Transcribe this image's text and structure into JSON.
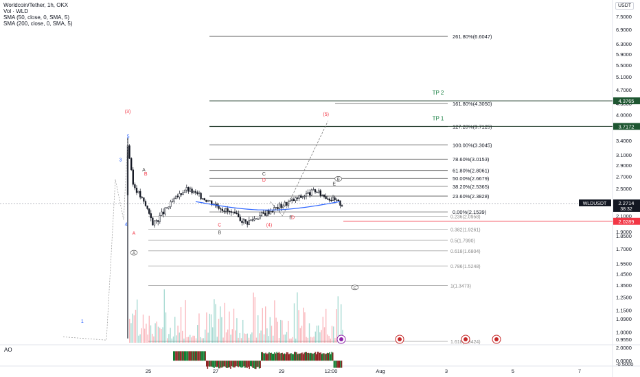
{
  "legend": {
    "symbol_line": "Worldcoin/Tether, 1h, OKX",
    "vol_line": "Vol · WLD",
    "sma50_line": "SMA (50, close, 0, SMA, 5)",
    "sma200_line": "SMA (200, close, 0, SMA, 5)"
  },
  "currency": "USDT",
  "ao_label": "AO",
  "colors": {
    "up": "#089981",
    "down": "#f23645",
    "blue": "#2962ff",
    "red_label": "#f23645",
    "green_label": "#26a69a",
    "tp_bg": "#1e5631",
    "candle": "#131722",
    "sma": "#2962ff",
    "ao_green": "#0b7a2c",
    "ao_red": "#8b1e1e"
  },
  "chart_data": [
    {
      "type": "candlestick",
      "title": "Worldcoin/Tether, 1h, OKX",
      "ylim": [
        0.92,
        7.7
      ],
      "y_scale": "log",
      "y_ticks": [
        "7.5000",
        "6.9000",
        "6.3000",
        "5.9000",
        "5.5000",
        "5.1000",
        "4.7000",
        "4.3000",
        "4.0000",
        "3.7000",
        "3.4000",
        "3.1000",
        "2.9000",
        "2.7000",
        "2.5000",
        "2.3000",
        "2.1000",
        "1.9000",
        "1.8500",
        "1.7000",
        "1.5500",
        "1.4500",
        "1.3500",
        "1.2500",
        "1.1500",
        "1.0900",
        "1.0000",
        "0.9550"
      ],
      "y_tick_values": [
        7.5,
        6.9,
        6.3,
        5.9,
        5.5,
        5.1,
        4.7,
        4.3,
        4.0,
        3.7,
        3.4,
        3.1,
        2.9,
        2.7,
        2.5,
        2.3,
        2.1,
        1.9,
        1.85,
        1.7,
        1.55,
        1.45,
        1.35,
        1.25,
        1.15,
        1.09,
        1.0,
        0.955
      ],
      "x_ticks": [
        "25",
        "27",
        "29",
        "12:00",
        "Aug",
        "3",
        "5",
        "7"
      ],
      "last_price": {
        "label": "WLDUSDT",
        "value": "2.2714",
        "countdown": "38:32"
      },
      "price_tags": [
        {
          "value": "4.3765",
          "y": 4.3765,
          "style": "dark"
        },
        {
          "value": "3.7172",
          "y": 3.7172,
          "style": "dark"
        },
        {
          "value": "2.0289",
          "y": 2.0289,
          "style": "red"
        }
      ],
      "fib_extension_levels": [
        {
          "label": "261.80%(6.6047)",
          "value": 6.6047
        },
        {
          "label": "161.80%(4.3050)",
          "value": 4.305
        },
        {
          "label": "127.20%(3.7125)",
          "value": 3.7125
        },
        {
          "label": "100.00%(3.3045)",
          "value": 3.3045
        },
        {
          "label": "78.60%(3.0153)",
          "value": 3.0153
        },
        {
          "label": "61.80%(2.8061)",
          "value": 2.8061
        },
        {
          "label": "50.00%(2.6679)",
          "value": 2.6679
        },
        {
          "label": "38.20%(2.5365)",
          "value": 2.5365
        },
        {
          "label": "23.60%(2.3828)",
          "value": 2.3828
        },
        {
          "label": "0.00%(2.1539)",
          "value": 2.1539
        }
      ],
      "fib_retracement_levels": [
        {
          "label": "0.236(2.0958)",
          "value": 2.0958
        },
        {
          "label": "0.382(1.9261)",
          "value": 1.9261
        },
        {
          "label": "0.5(1.7990)",
          "value": 1.799
        },
        {
          "label": "0.618(1.6804)",
          "value": 1.6804
        },
        {
          "label": "0.786(1.5248)",
          "value": 1.5248
        },
        {
          "label": "1(1.3473)",
          "value": 1.3473
        },
        {
          "label": "1.618(0.9424)",
          "value": 0.9424
        }
      ],
      "targets": [
        {
          "label": "TP 2",
          "value": 4.3765
        },
        {
          "label": "TP 1",
          "value": 3.7172
        }
      ],
      "wave_labels": [
        {
          "text": "(3)",
          "t": 0.0,
          "v": 4.05,
          "color": "red"
        },
        {
          "text": "5",
          "t": 0.02,
          "v": 3.45,
          "color": "blue"
        },
        {
          "text": "3",
          "t": -0.35,
          "v": 2.97,
          "color": "blue"
        },
        {
          "text": "4",
          "t": -0.08,
          "v": 1.97,
          "color": "blue"
        },
        {
          "text": "1",
          "t": -2.2,
          "v": 1.06,
          "color": "blue"
        },
        {
          "text": "A",
          "t": 0.78,
          "v": 2.79,
          "color": "dark"
        },
        {
          "text": "B",
          "t": 0.87,
          "v": 2.72,
          "color": "red"
        },
        {
          "text": "A",
          "t": 0.3,
          "v": 1.86,
          "color": "red"
        },
        {
          "text": "C",
          "t": 4.45,
          "v": 1.96,
          "color": "red"
        },
        {
          "text": "B",
          "t": 4.45,
          "v": 1.87,
          "color": "dark"
        },
        {
          "text": "C",
          "t": 6.6,
          "v": 2.72,
          "color": "dark"
        },
        {
          "text": "D",
          "t": 6.6,
          "v": 2.61,
          "color": "red"
        },
        {
          "text": "(4)",
          "t": 6.85,
          "v": 1.96,
          "color": "red"
        },
        {
          "text": "E",
          "t": 7.9,
          "v": 2.06,
          "color": "dark"
        },
        {
          "text": "D",
          "t": 8.0,
          "v": 2.06,
          "color": "red"
        },
        {
          "text": "(5)",
          "t": 9.6,
          "v": 3.98,
          "color": "red"
        },
        {
          "text": "E",
          "t": 10.0,
          "v": 2.55,
          "color": "dark"
        }
      ],
      "circled_labels": [
        {
          "text": "A",
          "t": 0.3,
          "v": 1.66
        },
        {
          "text": "B",
          "t": 10.2,
          "v": 2.66
        },
        {
          "text": "C",
          "t": 11.0,
          "v": 1.33
        }
      ],
      "volume_max": 1.0,
      "ao_range": [
        -0.5,
        2.0
      ],
      "ao_ticks": [
        "2.0000",
        "0.0000",
        "-0.5000"
      ]
    }
  ]
}
